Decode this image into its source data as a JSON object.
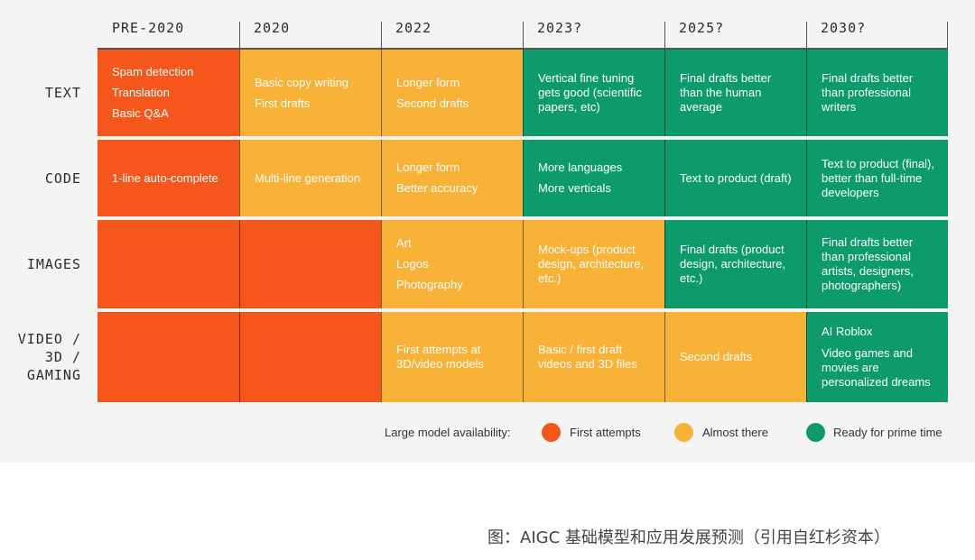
{
  "columns": [
    "PRE-2020",
    "2020",
    "2022",
    "2023?",
    "2025?",
    "2030?"
  ],
  "rows": [
    {
      "label": [
        "TEXT"
      ]
    },
    {
      "label": [
        "CODE"
      ]
    },
    {
      "label": [
        "IMAGES"
      ]
    },
    {
      "label": [
        "VIDEO /",
        "3D /",
        "GAMING"
      ]
    }
  ],
  "cells": [
    [
      {
        "status": "first",
        "lines": [
          "Spam detection",
          "Translation",
          "Basic Q&A"
        ],
        "spaced": true
      },
      {
        "status": "almost",
        "lines": [
          "Basic copy writing",
          "First drafts"
        ],
        "spaced": true
      },
      {
        "status": "almost",
        "lines": [
          "Longer form",
          "Second drafts"
        ],
        "spaced": true
      },
      {
        "status": "ready",
        "lines": [
          "Vertical fine tuning",
          "gets good (scientific",
          "papers, etc)"
        ],
        "spaced": false
      },
      {
        "status": "ready",
        "lines": [
          "Final drafts better",
          "than the human",
          "average"
        ],
        "spaced": false
      },
      {
        "status": "ready",
        "lines": [
          "Final drafts better",
          "than professional",
          "writers"
        ],
        "spaced": false
      }
    ],
    [
      {
        "status": "first",
        "lines": [
          "1-line auto-complete"
        ],
        "spaced": true
      },
      {
        "status": "almost",
        "lines": [
          "Multi-line generation"
        ],
        "spaced": true
      },
      {
        "status": "almost",
        "lines": [
          "Longer form",
          "Better accuracy"
        ],
        "spaced": true
      },
      {
        "status": "ready",
        "lines": [
          "More languages",
          "More verticals"
        ],
        "spaced": true
      },
      {
        "status": "ready",
        "lines": [
          "Text to product (draft)"
        ],
        "spaced": true
      },
      {
        "status": "ready",
        "lines": [
          "Text to product (final),",
          "better than full-time",
          "developers"
        ],
        "spaced": false
      }
    ],
    [
      {
        "status": "first",
        "lines": [],
        "spaced": true
      },
      {
        "status": "first",
        "lines": [],
        "spaced": true
      },
      {
        "status": "almost",
        "lines": [
          "Art",
          "Logos",
          "Photography"
        ],
        "spaced": true
      },
      {
        "status": "almost",
        "lines": [
          "Mock-ups (product",
          "design, architecture,",
          "etc.)"
        ],
        "spaced": false
      },
      {
        "status": "ready",
        "lines": [
          "Final drafts (product",
          "design, architecture,",
          "etc.)"
        ],
        "spaced": false
      },
      {
        "status": "ready",
        "lines": [
          "Final drafts better",
          "than professional",
          "artists, designers,",
          "photographers)"
        ],
        "spaced": false
      }
    ],
    [
      {
        "status": "first",
        "lines": [],
        "spaced": true
      },
      {
        "status": "first",
        "lines": [],
        "spaced": true
      },
      {
        "status": "almost",
        "lines": [
          "First attempts at",
          "3D/video models"
        ],
        "spaced": false
      },
      {
        "status": "almost",
        "lines": [
          "Basic / first draft",
          "videos and 3D files"
        ],
        "spaced": false
      },
      {
        "status": "almost",
        "lines": [
          "Second drafts"
        ],
        "spaced": false
      },
      {
        "status": "ready",
        "lines": [
          "AI Roblox",
          "Video games and",
          "movies are",
          "personalized dreams"
        ],
        "spaced": false,
        "firstGap": true
      }
    ]
  ],
  "legend": {
    "title": "Large model availability:",
    "items": [
      {
        "key": "first",
        "label": "First attempts",
        "color": "#f4561c"
      },
      {
        "key": "almost",
        "label": "Almost there",
        "color": "#f8b238"
      },
      {
        "key": "ready",
        "label": "Ready for prime time",
        "color": "#0d9a6c"
      }
    ]
  },
  "caption": "图：AIGC 基础模型和应用发展预测（引用自红杉资本）"
}
